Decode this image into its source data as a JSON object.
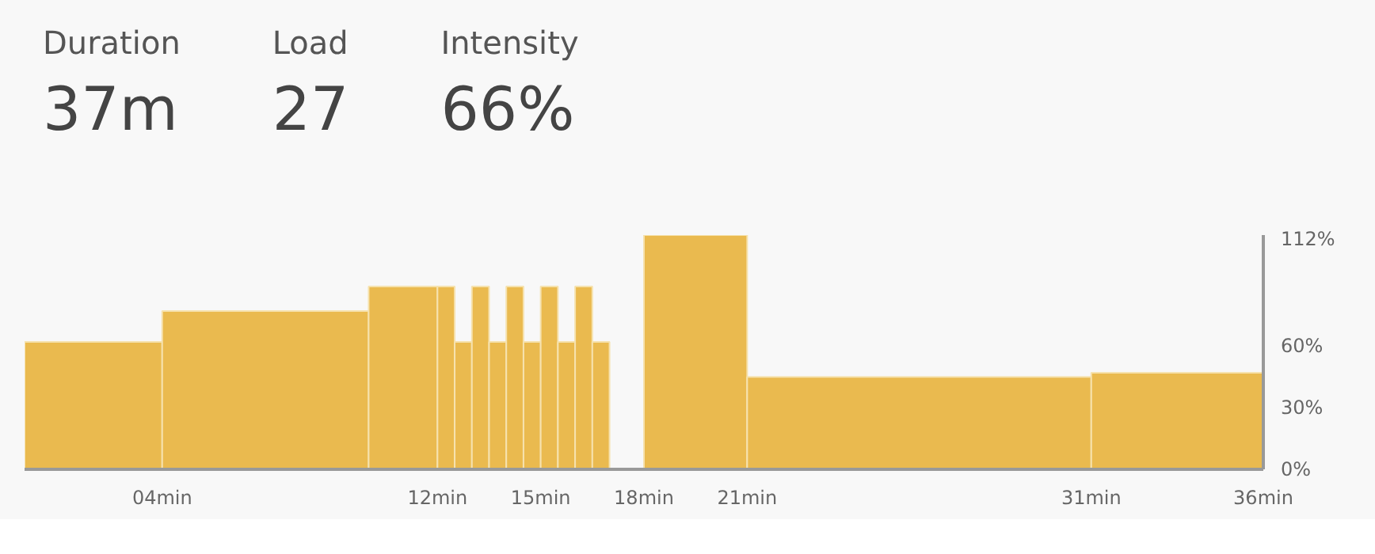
{
  "chart_data": {
    "type": "histogram",
    "annotations": [
      "Duration",
      "37m",
      "Load",
      "27",
      "Intensity",
      "66%"
    ],
    "bins": [
      0,
      4,
      10,
      12,
      12.5,
      13,
      13.5,
      14,
      14.5,
      15,
      15.5,
      16,
      16.5,
      17,
      18,
      21,
      31,
      36
    ],
    "values": [
      62,
      77,
      89,
      89,
      62,
      89,
      62,
      89,
      62,
      89,
      62,
      89,
      62,
      0,
      114,
      45,
      47
    ],
    "color": "#eaba4f",
    "xlim": [
      0,
      36
    ],
    "xticks": [
      {
        "value": 4,
        "label": "04min"
      },
      {
        "value": 12,
        "label": "12min"
      },
      {
        "value": 15,
        "label": "15min"
      },
      {
        "value": 18,
        "label": "18min"
      },
      {
        "value": 21,
        "label": "21min"
      },
      {
        "value": 31,
        "label": "31min"
      },
      {
        "value": 36,
        "label": "36min"
      }
    ],
    "ylim": [
      0,
      114
    ],
    "yticks": [
      {
        "value": 0,
        "label": "0%"
      },
      {
        "value": 30,
        "label": "30%"
      },
      {
        "value": 60,
        "label": "60%"
      },
      {
        "value": 112,
        "label": "112%"
      }
    ],
    "grid": false
  }
}
